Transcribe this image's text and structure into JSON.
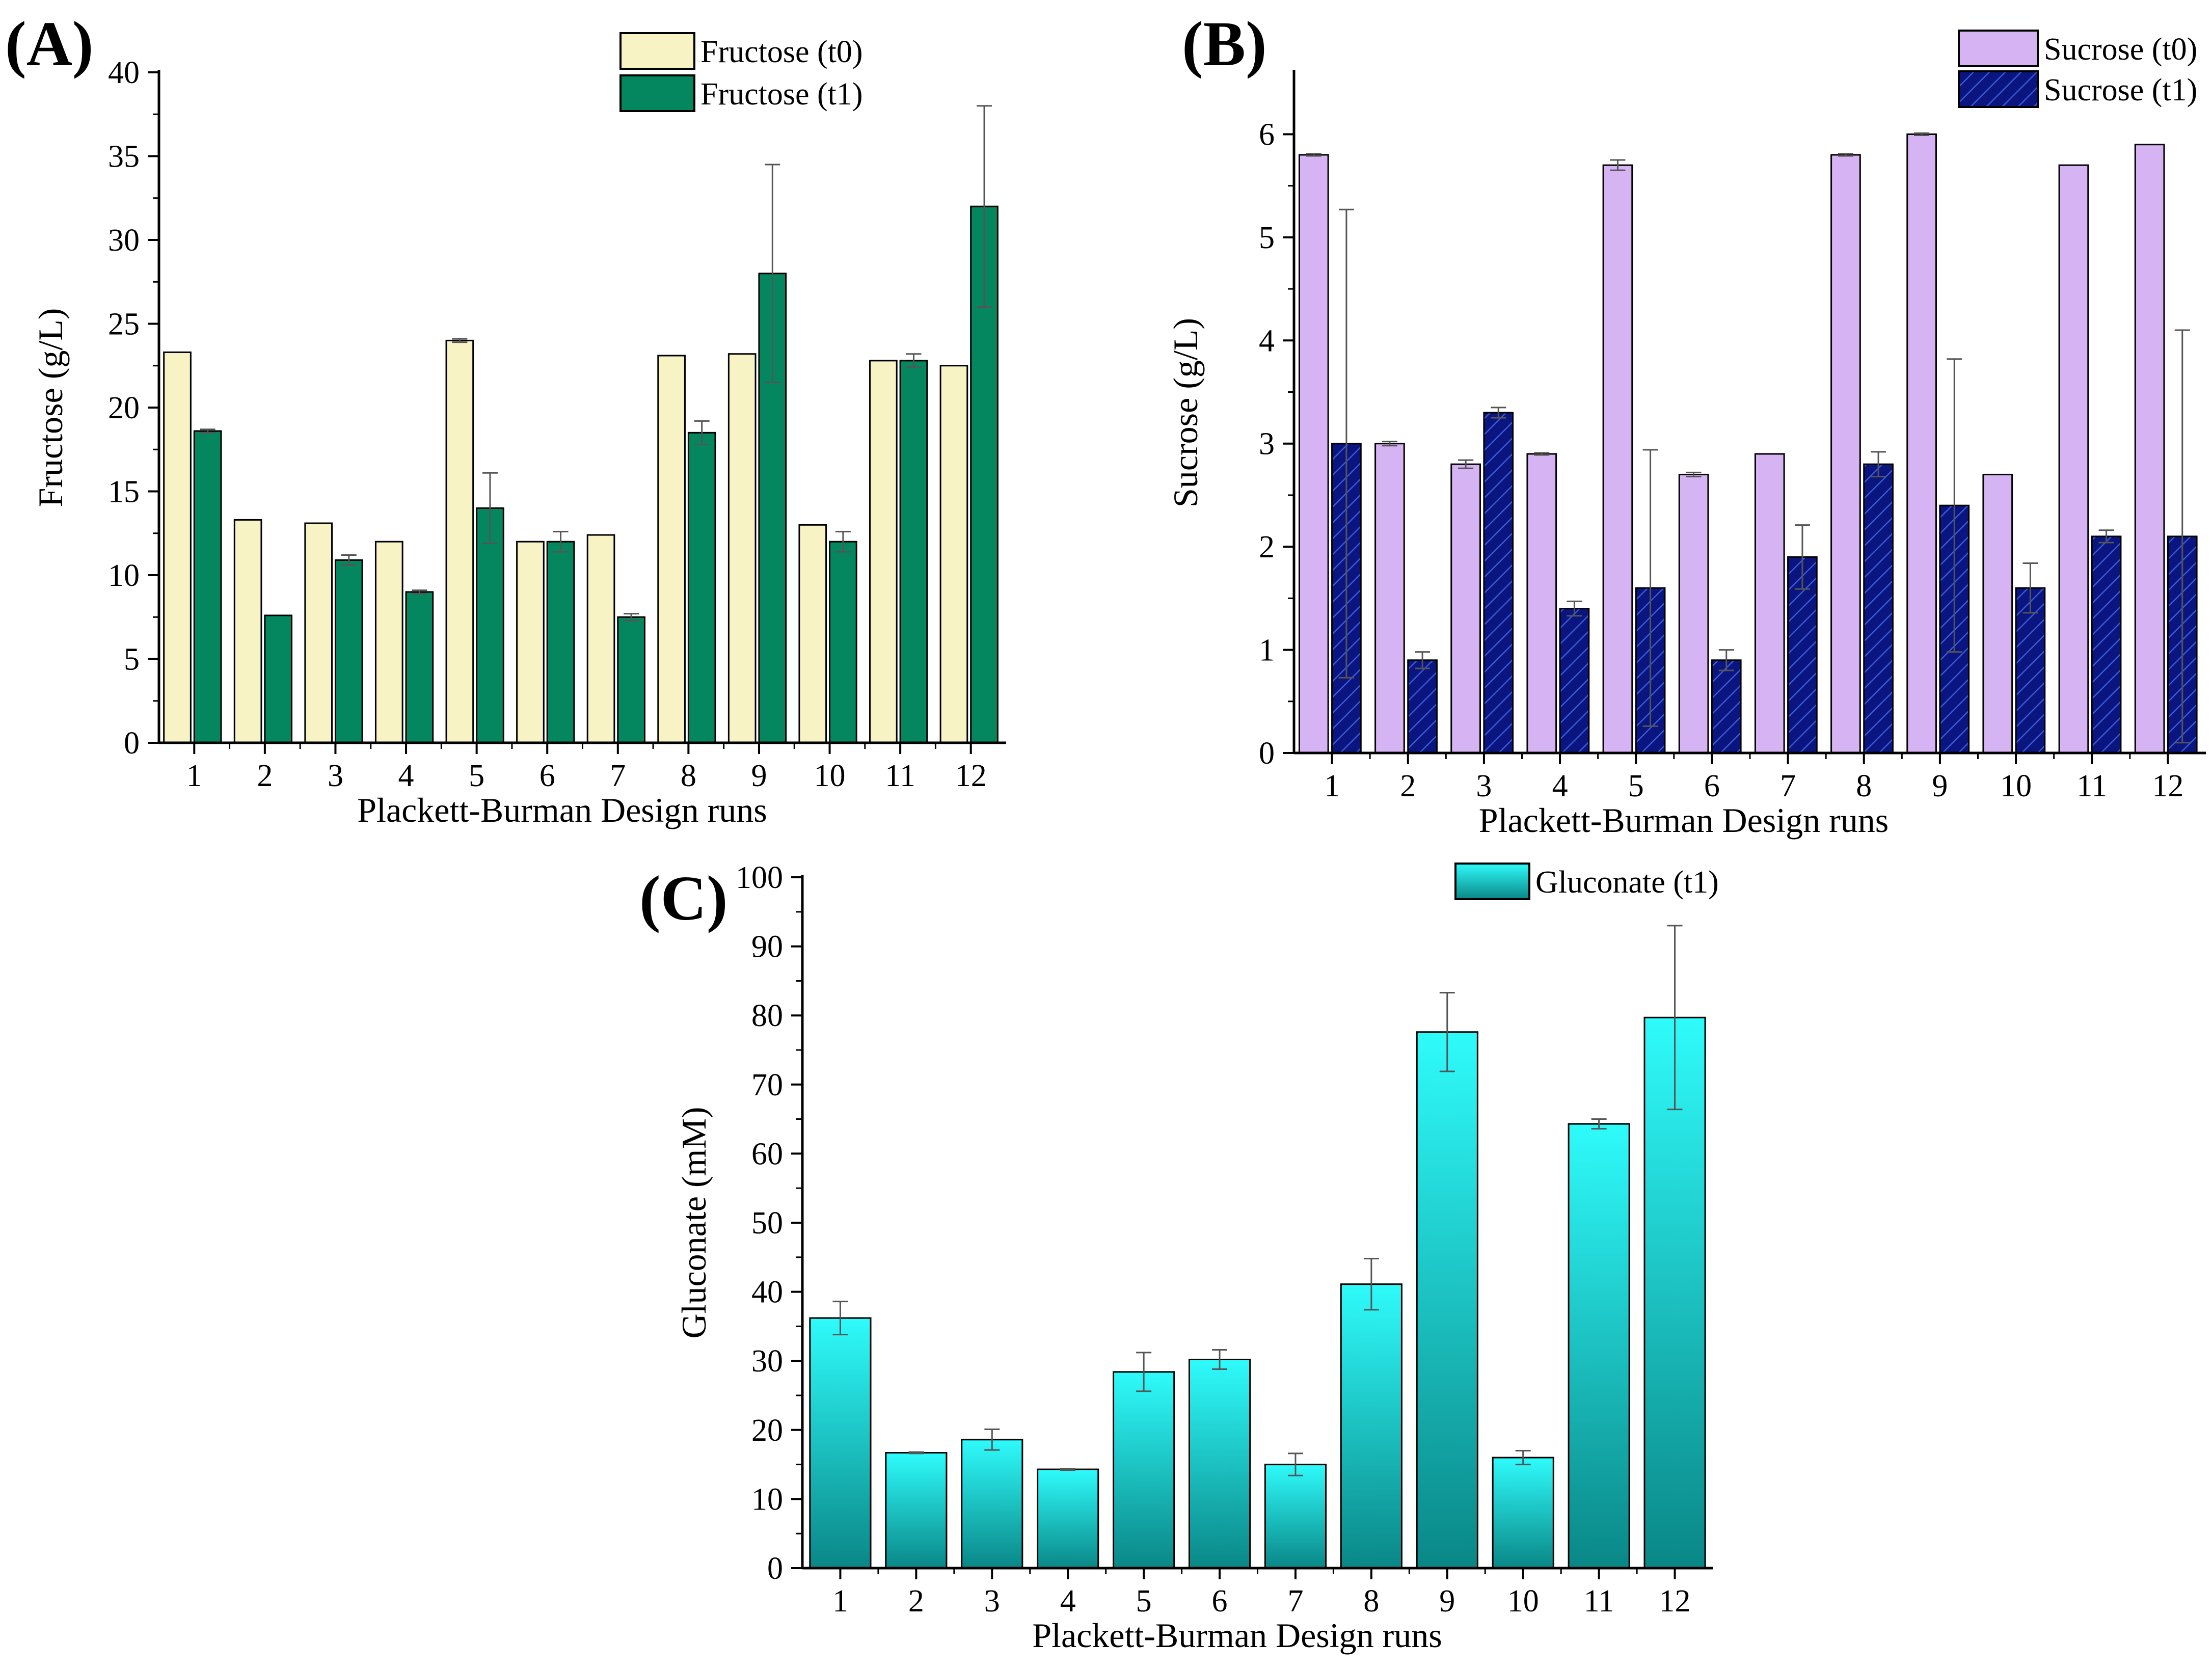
{
  "colors": {
    "fructose_t0": "#f7f3c4",
    "fructose_t1": "#04875e",
    "sucrose_t0": "#d6b3f3",
    "sucrose_t1": "#0a1580",
    "gluconate_top": "#2ffbfb",
    "gluconate_bottom": "#0a8787"
  },
  "chart_data": [
    {
      "id": "A",
      "panel_label": "(A)",
      "type": "bar",
      "title": "",
      "xlabel": "Plackett-Burman Design runs",
      "ylabel": "Fructose (g/L)",
      "ylim": [
        0,
        40
      ],
      "yticks": [
        0,
        5,
        10,
        15,
        20,
        25,
        30,
        35,
        40
      ],
      "categories": [
        "1",
        "2",
        "3",
        "4",
        "5",
        "6",
        "7",
        "8",
        "9",
        "10",
        "11",
        "12"
      ],
      "legend_position": "top-right",
      "series": [
        {
          "name": "Fructose (t0)",
          "color_key": "fructose_t0",
          "values": [
            23.3,
            13.3,
            13.1,
            12.0,
            24.0,
            12.0,
            12.4,
            23.1,
            23.2,
            13.0,
            22.8,
            22.5
          ],
          "errors": [
            0,
            0,
            0,
            0,
            0.1,
            0,
            0,
            0,
            0,
            0,
            0,
            0
          ]
        },
        {
          "name": "Fructose (t1)",
          "color_key": "fructose_t1",
          "values": [
            18.6,
            7.6,
            10.9,
            9.0,
            14.0,
            12.0,
            7.5,
            18.5,
            28.0,
            12.0,
            22.8,
            32.0
          ],
          "errors": [
            0.1,
            0,
            0.3,
            0.1,
            2.1,
            0.6,
            0.2,
            0.7,
            6.5,
            0.6,
            0.4,
            6.0
          ]
        }
      ]
    },
    {
      "id": "B",
      "panel_label": "(B)",
      "type": "bar",
      "title": "",
      "xlabel": "Plackett-Burman Design runs",
      "ylabel": "Sucrose (g/L)",
      "ylim": [
        0,
        6.6
      ],
      "yticks": [
        0,
        1,
        2,
        3,
        4,
        5,
        6
      ],
      "categories": [
        "1",
        "2",
        "3",
        "4",
        "5",
        "6",
        "7",
        "8",
        "9",
        "10",
        "11",
        "12"
      ],
      "legend_position": "top-right",
      "series": [
        {
          "name": "Sucrose (t0)",
          "color_key": "sucrose_t0",
          "values": [
            5.8,
            3.0,
            2.8,
            2.9,
            5.7,
            2.7,
            2.9,
            5.8,
            6.0,
            2.7,
            5.7,
            5.9
          ],
          "errors": [
            0.01,
            0.02,
            0.04,
            0.01,
            0.05,
            0.02,
            0,
            0.01,
            0.01,
            0,
            0,
            0
          ]
        },
        {
          "name": "Sucrose (t1)",
          "color_key": "sucrose_t1",
          "values": [
            3.0,
            0.9,
            3.3,
            1.4,
            1.6,
            0.9,
            1.9,
            2.8,
            2.4,
            1.6,
            2.1,
            2.1
          ],
          "errors": [
            2.27,
            0.08,
            0.05,
            0.07,
            1.34,
            0.1,
            0.31,
            0.12,
            1.42,
            0.24,
            0.06,
            2.0
          ]
        }
      ]
    },
    {
      "id": "C",
      "panel_label": "(C)",
      "type": "bar",
      "title": "",
      "xlabel": "Plackett-Burman Design runs",
      "ylabel": "Gluconate (mM)",
      "ylim": [
        0,
        100
      ],
      "yticks": [
        0,
        10,
        20,
        30,
        40,
        50,
        60,
        70,
        80,
        90,
        100
      ],
      "categories": [
        "1",
        "2",
        "3",
        "4",
        "5",
        "6",
        "7",
        "8",
        "9",
        "10",
        "11",
        "12"
      ],
      "legend_position": "top-center",
      "series": [
        {
          "name": "Gluconate (t1)",
          "color_key": "gluconate",
          "values": [
            36.2,
            16.7,
            18.6,
            14.3,
            28.4,
            30.2,
            15.0,
            41.1,
            77.6,
            16.0,
            64.3,
            79.7
          ],
          "errors": [
            2.4,
            0.1,
            1.5,
            0.1,
            2.8,
            1.4,
            1.6,
            3.7,
            5.7,
            1.0,
            0.7,
            13.3
          ]
        }
      ]
    }
  ]
}
